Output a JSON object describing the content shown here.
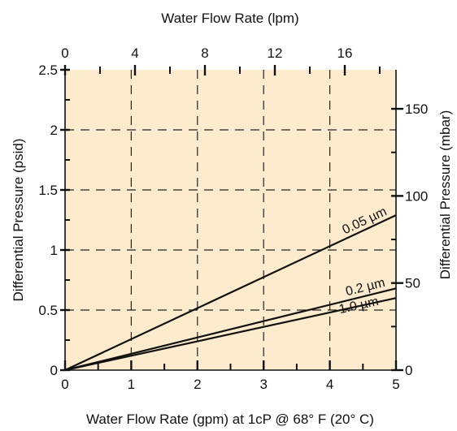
{
  "chart_data": {
    "type": "line",
    "title": "",
    "xlabel": "Water Flow Rate (gpm) at 1cP @ 68° F (20° C)",
    "ylabel": "Differential Pressure (psid)",
    "x2label": "Water Flow Rate (lpm)",
    "y2label": "Differential Pressure (mbar)",
    "xlim": [
      0,
      5
    ],
    "ylim": [
      0,
      2.5
    ],
    "x2lim": [
      0,
      18.93
    ],
    "y2lim": [
      0,
      172.4
    ],
    "x_ticks": [
      "0",
      "1",
      "2",
      "3",
      "4",
      "5"
    ],
    "y_ticks": [
      "0",
      "0.5",
      "1",
      "1.5",
      "2",
      "2.5"
    ],
    "x2_ticks": [
      "0",
      "4",
      "8",
      "12",
      "16"
    ],
    "y2_ticks": [
      "0",
      "50",
      "100",
      "150"
    ],
    "grid": true,
    "background_color": "#fdebcd",
    "series": [
      {
        "name": "0.05 µm",
        "x": [
          0,
          5
        ],
        "y": [
          0,
          1.29
        ]
      },
      {
        "name": "0.2 µm",
        "x": [
          0,
          5
        ],
        "y": [
          0,
          0.68
        ]
      },
      {
        "name": "1.0 µm",
        "x": [
          0,
          5
        ],
        "y": [
          0,
          0.6
        ]
      }
    ]
  }
}
